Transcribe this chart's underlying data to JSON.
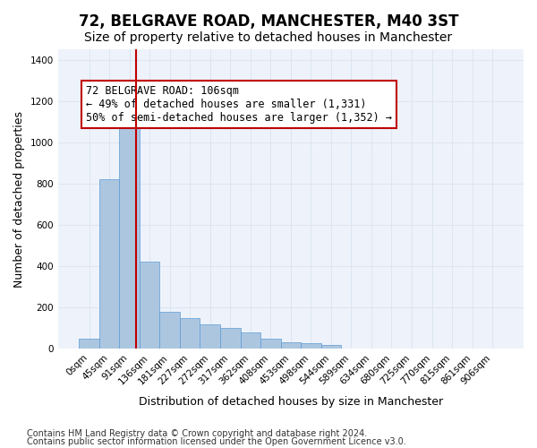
{
  "title": "72, BELGRAVE ROAD, MANCHESTER, M40 3ST",
  "subtitle": "Size of property relative to detached houses in Manchester",
  "xlabel": "Distribution of detached houses by size in Manchester",
  "ylabel": "Number of detached properties",
  "bin_labels": [
    "0sqm",
    "45sqm",
    "91sqm",
    "136sqm",
    "181sqm",
    "227sqm",
    "272sqm",
    "317sqm",
    "362sqm",
    "408sqm",
    "453sqm",
    "498sqm",
    "544sqm",
    "589sqm",
    "634sqm",
    "680sqm",
    "725sqm",
    "770sqm",
    "815sqm",
    "861sqm",
    "906sqm"
  ],
  "bar_heights": [
    50,
    820,
    1080,
    420,
    180,
    150,
    120,
    100,
    80,
    50,
    30,
    25,
    20,
    0,
    0,
    0,
    0,
    0,
    0,
    0,
    0
  ],
  "bar_color": "#adc6e0",
  "bar_edge_color": "#5b9bd5",
  "grid_color": "#dce6f1",
  "background_color": "#eef3fb",
  "vline_color": "#c00000",
  "annotation_text": "72 BELGRAVE ROAD: 106sqm\n← 49% of detached houses are smaller (1,331)\n50% of semi-detached houses are larger (1,352) →",
  "annotation_box_color": "#c00000",
  "ylim": [
    0,
    1450
  ],
  "footer_line1": "Contains HM Land Registry data © Crown copyright and database right 2024.",
  "footer_line2": "Contains public sector information licensed under the Open Government Licence v3.0.",
  "title_fontsize": 12,
  "subtitle_fontsize": 10,
  "xlabel_fontsize": 9,
  "ylabel_fontsize": 9,
  "tick_fontsize": 7.5,
  "annotation_fontsize": 8.5,
  "footer_fontsize": 7
}
